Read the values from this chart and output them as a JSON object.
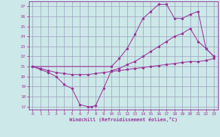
{
  "xlabel": "Windchill (Refroidissement éolien,°C)",
  "bg_color": "#cce8e8",
  "grid_color": "#9999bb",
  "line_color": "#993399",
  "xlim": [
    -0.5,
    23.5
  ],
  "ylim": [
    16.7,
    27.5
  ],
  "yticks": [
    17,
    18,
    19,
    20,
    21,
    22,
    23,
    24,
    25,
    26,
    27
  ],
  "xticks": [
    0,
    1,
    2,
    3,
    4,
    5,
    6,
    7,
    8,
    9,
    10,
    11,
    12,
    13,
    14,
    15,
    16,
    17,
    18,
    19,
    20,
    21,
    22,
    23
  ],
  "line1_x": [
    0,
    1,
    2,
    3,
    4,
    5,
    6,
    7,
    7.5,
    8,
    9,
    10,
    11,
    12,
    13,
    14,
    15,
    16,
    17,
    18,
    19,
    20,
    21,
    22,
    23
  ],
  "line1_y": [
    21.0,
    20.7,
    20.4,
    20.0,
    19.2,
    18.8,
    17.2,
    17.0,
    17.0,
    17.1,
    18.8,
    20.6,
    20.8,
    21.2,
    21.5,
    22.0,
    22.5,
    23.0,
    23.5,
    24.0,
    24.3,
    24.8,
    23.5,
    22.8,
    22.0
  ],
  "line2_x": [
    0,
    1,
    2,
    3,
    4,
    5,
    6,
    7,
    8,
    9,
    10,
    11,
    12,
    13,
    14,
    15,
    16,
    17,
    18,
    19,
    20,
    21,
    22,
    23
  ],
  "line2_y": [
    21.0,
    20.8,
    20.6,
    20.4,
    20.3,
    20.2,
    20.2,
    20.2,
    20.3,
    20.4,
    20.5,
    20.6,
    20.7,
    20.8,
    20.9,
    21.0,
    21.1,
    21.2,
    21.3,
    21.4,
    21.5,
    21.5,
    21.6,
    21.8
  ],
  "line3_x": [
    0,
    10,
    11,
    12,
    13,
    14,
    15,
    16,
    17,
    18,
    19,
    20,
    21,
    22,
    23
  ],
  "line3_y": [
    21.0,
    21.0,
    21.8,
    22.8,
    24.2,
    25.8,
    26.5,
    27.2,
    27.2,
    25.8,
    25.8,
    26.2,
    26.5,
    22.8,
    22.0
  ]
}
